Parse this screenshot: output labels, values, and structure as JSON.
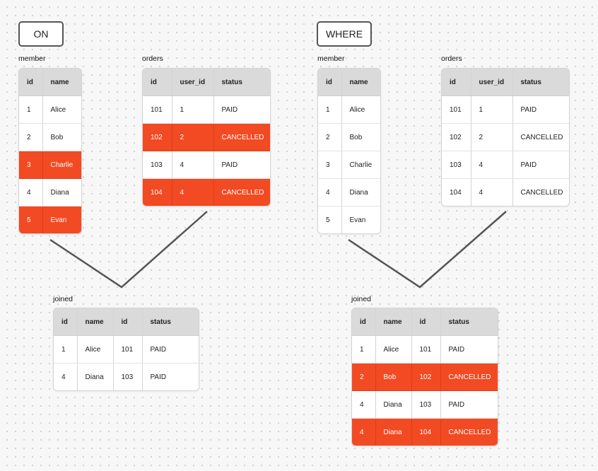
{
  "panels": {
    "on": {
      "badge": "ON",
      "member": {
        "label": "member",
        "columns": [
          "id",
          "name"
        ],
        "rows": [
          {
            "cells": [
              "1",
              "Alice"
            ],
            "hl": false
          },
          {
            "cells": [
              "2",
              "Bob"
            ],
            "hl": false
          },
          {
            "cells": [
              "3",
              "Charlie"
            ],
            "hl": true
          },
          {
            "cells": [
              "4",
              "Diana"
            ],
            "hl": false
          },
          {
            "cells": [
              "5",
              "Evan"
            ],
            "hl": true
          }
        ]
      },
      "orders": {
        "label": "orders",
        "columns": [
          "id",
          "user_id",
          "status"
        ],
        "rows": [
          {
            "cells": [
              "101",
              "1",
              "PAID"
            ],
            "hl": false
          },
          {
            "cells": [
              "102",
              "2",
              "CANCELLED"
            ],
            "hl": true
          },
          {
            "cells": [
              "103",
              "4",
              "PAID"
            ],
            "hl": false
          },
          {
            "cells": [
              "104",
              "4",
              "CANCELLED"
            ],
            "hl": true
          }
        ]
      },
      "joined": {
        "label": "joined",
        "columns": [
          "id",
          "name",
          "id",
          "status"
        ],
        "rows": [
          {
            "cells": [
              "1",
              "Alice",
              "101",
              "PAID"
            ],
            "hl": false
          },
          {
            "cells": [
              "4",
              "Diana",
              "103",
              "PAID"
            ],
            "hl": false
          }
        ]
      }
    },
    "where": {
      "badge": "WHERE",
      "member": {
        "label": "member",
        "columns": [
          "id",
          "name"
        ],
        "rows": [
          {
            "cells": [
              "1",
              "Alice"
            ],
            "hl": false
          },
          {
            "cells": [
              "2",
              "Bob"
            ],
            "hl": false
          },
          {
            "cells": [
              "3",
              "Charlie"
            ],
            "hl": false
          },
          {
            "cells": [
              "4",
              "Diana"
            ],
            "hl": false
          },
          {
            "cells": [
              "5",
              "Evan"
            ],
            "hl": false
          }
        ]
      },
      "orders": {
        "label": "orders",
        "columns": [
          "id",
          "user_id",
          "status"
        ],
        "rows": [
          {
            "cells": [
              "101",
              "1",
              "PAID"
            ],
            "hl": false
          },
          {
            "cells": [
              "102",
              "2",
              "CANCELLED"
            ],
            "hl": false
          },
          {
            "cells": [
              "103",
              "4",
              "PAID"
            ],
            "hl": false
          },
          {
            "cells": [
              "104",
              "4",
              "CANCELLED"
            ],
            "hl": false
          }
        ]
      },
      "joined": {
        "label": "joined",
        "columns": [
          "id",
          "name",
          "id",
          "status"
        ],
        "rows": [
          {
            "cells": [
              "1",
              "Alice",
              "101",
              "PAID"
            ],
            "hl": false
          },
          {
            "cells": [
              "2",
              "Bob",
              "102",
              "CANCELLED"
            ],
            "hl": true
          },
          {
            "cells": [
              "4",
              "Diana",
              "103",
              "PAID"
            ],
            "hl": false
          },
          {
            "cells": [
              "4",
              "Diana",
              "104",
              "CANCELLED"
            ],
            "hl": true
          }
        ]
      }
    }
  },
  "colors": {
    "highlight": "#f24a23",
    "header": "#dadada",
    "connector": "#555555"
  }
}
